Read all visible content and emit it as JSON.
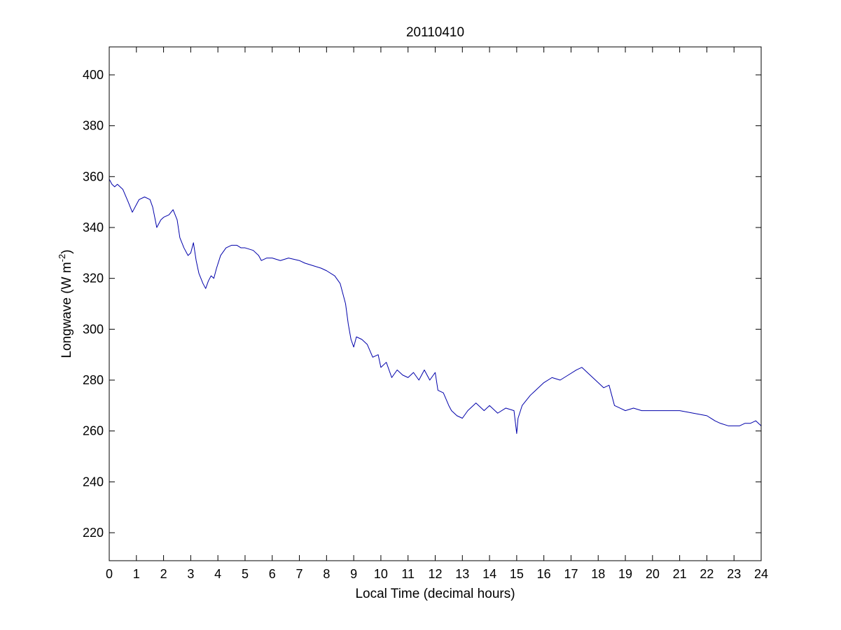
{
  "chart_data": {
    "type": "line",
    "title": "20110410",
    "xlabel": "Local Time (decimal hours)",
    "ylabel_main": "Longwave (W m",
    "ylabel_exp": "-2",
    "ylabel_close": ")",
    "xlim": [
      0,
      24
    ],
    "ylim": [
      209,
      411
    ],
    "xticks": [
      0,
      1,
      2,
      3,
      4,
      5,
      6,
      7,
      8,
      9,
      10,
      11,
      12,
      13,
      14,
      15,
      16,
      17,
      18,
      19,
      20,
      21,
      22,
      23,
      24
    ],
    "yticks": [
      220,
      240,
      260,
      280,
      300,
      320,
      340,
      360,
      380,
      400
    ],
    "grid": false,
    "series": [
      {
        "color": "#0000aa",
        "x": [
          0.0,
          0.1,
          0.2,
          0.3,
          0.5,
          0.7,
          0.85,
          1.0,
          1.1,
          1.3,
          1.5,
          1.6,
          1.75,
          1.8,
          1.9,
          2.0,
          2.2,
          2.35,
          2.5,
          2.6,
          2.75,
          2.9,
          3.0,
          3.1,
          3.2,
          3.3,
          3.45,
          3.55,
          3.65,
          3.75,
          3.85,
          3.95,
          4.1,
          4.3,
          4.5,
          4.7,
          4.85,
          5.0,
          5.3,
          5.5,
          5.6,
          5.8,
          6.0,
          6.3,
          6.6,
          7.0,
          7.2,
          7.5,
          7.8,
          8.0,
          8.3,
          8.5,
          8.7,
          8.8,
          8.9,
          9.0,
          9.1,
          9.3,
          9.5,
          9.7,
          9.9,
          10.0,
          10.2,
          10.4,
          10.6,
          10.8,
          11.0,
          11.2,
          11.4,
          11.6,
          11.8,
          12.0,
          12.1,
          12.3,
          12.5,
          12.6,
          12.8,
          13.0,
          13.2,
          13.5,
          13.8,
          14.0,
          14.3,
          14.6,
          14.9,
          15.0,
          15.05,
          15.2,
          15.5,
          15.8,
          16.0,
          16.3,
          16.6,
          16.9,
          17.2,
          17.4,
          17.6,
          17.8,
          18.0,
          18.2,
          18.4,
          18.5,
          18.6,
          18.8,
          19.0,
          19.3,
          19.6,
          20.0,
          20.5,
          21.0,
          21.5,
          22.0,
          22.3,
          22.5,
          22.8,
          23.0,
          23.2,
          23.4,
          23.6,
          23.8,
          24.0
        ],
        "y": [
          359,
          357,
          356,
          357,
          355,
          350,
          346,
          349,
          351,
          352,
          351,
          348,
          340,
          341,
          343,
          344,
          345,
          347,
          343,
          336,
          332,
          329,
          330,
          334,
          327,
          322,
          318,
          316,
          319,
          321,
          320,
          324,
          329,
          332,
          333,
          333,
          332,
          332,
          331,
          329,
          327,
          328,
          328,
          327,
          328,
          327,
          326,
          325,
          324,
          323,
          321,
          318,
          310,
          302,
          296,
          293,
          297,
          296,
          294,
          289,
          290,
          285,
          287,
          281,
          284,
          282,
          281,
          283,
          280,
          284,
          280,
          283,
          276,
          275,
          270,
          268,
          266,
          265,
          268,
          271,
          268,
          270,
          267,
          269,
          268,
          259,
          265,
          270,
          274,
          277,
          279,
          281,
          280,
          282,
          284,
          285,
          283,
          281,
          279,
          277,
          278,
          274,
          270,
          269,
          268,
          269,
          268,
          268,
          268,
          268,
          267,
          266,
          264,
          263,
          262,
          262,
          262,
          263,
          263,
          264,
          262
        ]
      }
    ]
  }
}
